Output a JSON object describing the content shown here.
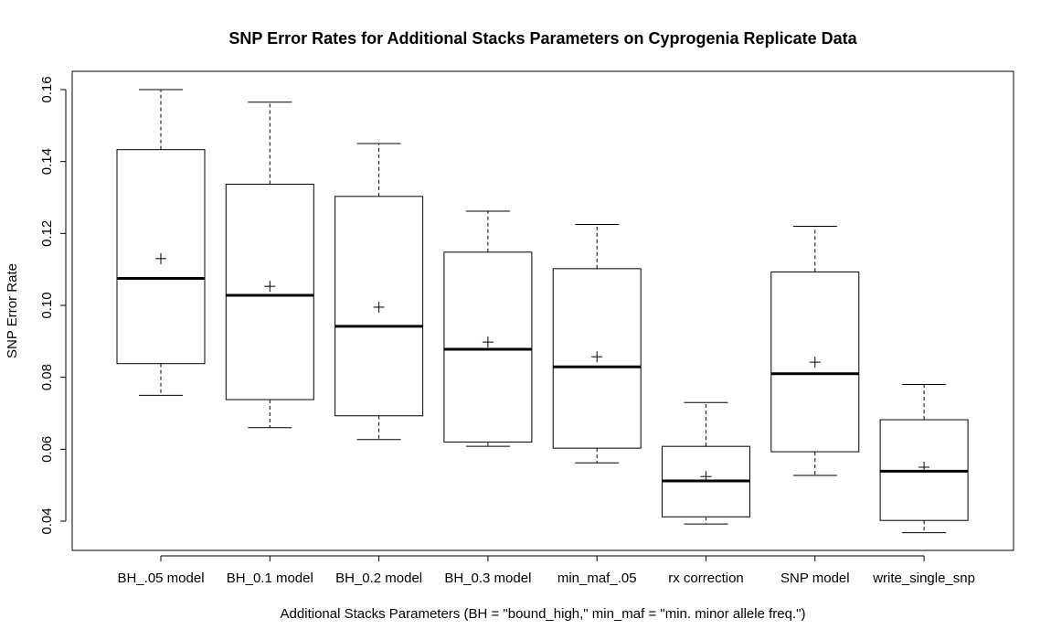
{
  "chart_data": {
    "type": "boxplot",
    "title": "SNP Error Rates for Additional Stacks Parameters on Cyprogenia Replicate Data",
    "xlabel": "Additional Stacks Parameters (BH = \"bound_high,\" min_maf = \"min. minor allele freq.\")",
    "ylabel": "SNP Error Rate",
    "ylim": [
      0.032,
      0.165
    ],
    "yticks": [
      "0.04",
      "0.06",
      "0.08",
      "0.10",
      "0.12",
      "0.14",
      "0.16"
    ],
    "categories": [
      "BH_.05 model",
      "BH_0.1 model",
      "BH_0.2 model",
      "BH_0.3 model",
      "min_maf_.05",
      "rx correction",
      "SNP model",
      "write_single_snp"
    ],
    "boxes": [
      {
        "min": 0.075,
        "q1": 0.0838,
        "median": 0.1075,
        "q3": 0.1433,
        "max": 0.16,
        "mean": 0.113
      },
      {
        "min": 0.066,
        "q1": 0.0738,
        "median": 0.1028,
        "q3": 0.1337,
        "max": 0.1565,
        "mean": 0.1053
      },
      {
        "min": 0.0627,
        "q1": 0.0693,
        "median": 0.0942,
        "q3": 0.1303,
        "max": 0.145,
        "mean": 0.0995
      },
      {
        "min": 0.0608,
        "q1": 0.062,
        "median": 0.0878,
        "q3": 0.1148,
        "max": 0.1262,
        "mean": 0.0898
      },
      {
        "min": 0.0562,
        "q1": 0.0603,
        "median": 0.0829,
        "q3": 0.1102,
        "max": 0.1225,
        "mean": 0.0857
      },
      {
        "min": 0.0392,
        "q1": 0.0412,
        "median": 0.0512,
        "q3": 0.0608,
        "max": 0.073,
        "mean": 0.0524
      },
      {
        "min": 0.0527,
        "q1": 0.0593,
        "median": 0.081,
        "q3": 0.1093,
        "max": 0.122,
        "mean": 0.0842
      },
      {
        "min": 0.0368,
        "q1": 0.0402,
        "median": 0.0539,
        "q3": 0.0682,
        "max": 0.078,
        "mean": 0.055
      }
    ],
    "grid": false,
    "legend": "none",
    "colors": {
      "box_fill": "#ffffff",
      "stroke": "#000000"
    }
  }
}
